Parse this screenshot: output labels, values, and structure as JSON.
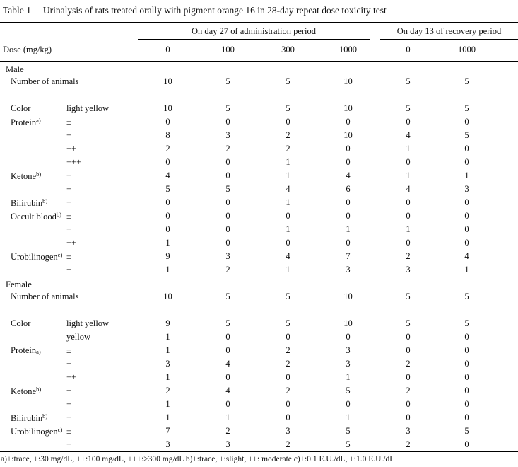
{
  "title": {
    "label": "Table 1",
    "text": "Urinalysis of rats treated orally with pigment orange 16 in 28-day repeat dose toxicity test"
  },
  "header": {
    "admin_group": "On day 27 of administration period",
    "recovery_group": "On day 13 of recovery period",
    "dose_label": "Dose (mg/kg)",
    "doses": [
      "0",
      "100",
      "300",
      "1000",
      "0",
      "1000"
    ]
  },
  "sections": [
    {
      "name": "Male",
      "rows": [
        {
          "wide": true,
          "label": "Number of animals",
          "values": [
            "10",
            "5",
            "5",
            "10",
            "5",
            "5"
          ]
        },
        {
          "type": "spacer"
        },
        {
          "label": "Color",
          "grade": "light yellow",
          "values": [
            "10",
            "5",
            "5",
            "10",
            "5",
            "5"
          ]
        },
        {
          "label": "Protein",
          "marker": "a)",
          "marker_style": "sup",
          "grade": "±",
          "values": [
            "0",
            "0",
            "0",
            "0",
            "0",
            "0"
          ]
        },
        {
          "grade": "+",
          "values": [
            "8",
            "3",
            "2",
            "10",
            "4",
            "5"
          ]
        },
        {
          "grade": "++",
          "values": [
            "2",
            "2",
            "2",
            "0",
            "1",
            "0"
          ]
        },
        {
          "grade": "+++",
          "values": [
            "0",
            "0",
            "1",
            "0",
            "0",
            "0"
          ]
        },
        {
          "label": "Ketone",
          "marker": "b)",
          "marker_style": "sup",
          "grade": "±",
          "values": [
            "4",
            "0",
            "1",
            "4",
            "1",
            "1"
          ]
        },
        {
          "grade": "+",
          "values": [
            "5",
            "5",
            "4",
            "6",
            "4",
            "3"
          ]
        },
        {
          "label": "Bilirubin",
          "marker": "b)",
          "marker_style": "sup",
          "grade": "+",
          "values": [
            "0",
            "0",
            "1",
            "0",
            "0",
            "0"
          ]
        },
        {
          "label": "Occult blood",
          "marker": "b)",
          "marker_style": "sup",
          "grade": "±",
          "values": [
            "0",
            "0",
            "0",
            "0",
            "0",
            "0"
          ]
        },
        {
          "grade": "+",
          "values": [
            "0",
            "0",
            "1",
            "1",
            "1",
            "0"
          ]
        },
        {
          "grade": "++",
          "values": [
            "1",
            "0",
            "0",
            "0",
            "0",
            "0"
          ]
        },
        {
          "label": "Urobilinogen",
          "marker": "c)",
          "marker_style": "sup",
          "grade": "±",
          "values": [
            "9",
            "3",
            "4",
            "7",
            "2",
            "4"
          ]
        },
        {
          "grade": "+",
          "values": [
            "1",
            "2",
            "1",
            "3",
            "3",
            "1"
          ]
        }
      ]
    },
    {
      "name": "Female",
      "rows": [
        {
          "wide": true,
          "label": "Number of animals",
          "values": [
            "10",
            "5",
            "5",
            "10",
            "5",
            "5"
          ]
        },
        {
          "type": "spacer"
        },
        {
          "label": "Color",
          "grade": "light yellow",
          "values": [
            "9",
            "5",
            "5",
            "10",
            "5",
            "5"
          ]
        },
        {
          "grade": "yellow",
          "values": [
            "1",
            "0",
            "0",
            "0",
            "0",
            "0"
          ]
        },
        {
          "label": "Protein",
          "marker": "a)",
          "marker_style": "low",
          "grade": "±",
          "values": [
            "1",
            "0",
            "2",
            "3",
            "0",
            "0"
          ]
        },
        {
          "grade": "+",
          "values": [
            "3",
            "4",
            "2",
            "3",
            "2",
            "0"
          ]
        },
        {
          "grade": "++",
          "values": [
            "1",
            "0",
            "0",
            "1",
            "0",
            "0"
          ]
        },
        {
          "label": "Ketone",
          "marker": "b)",
          "marker_style": "sup",
          "grade": "±",
          "values": [
            "2",
            "4",
            "2",
            "5",
            "2",
            "0"
          ]
        },
        {
          "grade": "+",
          "values": [
            "1",
            "0",
            "0",
            "0",
            "0",
            "0"
          ]
        },
        {
          "label": "Bilirubin",
          "marker": "b)",
          "marker_style": "sup",
          "grade": "+",
          "values": [
            "1",
            "1",
            "0",
            "1",
            "0",
            "0"
          ]
        },
        {
          "label": "Urobilinogen",
          "marker": "c)",
          "marker_style": "sup",
          "grade": "±",
          "values": [
            "7",
            "2",
            "3",
            "5",
            "3",
            "5"
          ]
        },
        {
          "grade": "+",
          "values": [
            "3",
            "3",
            "2",
            "5",
            "2",
            "0"
          ]
        }
      ]
    }
  ],
  "footnote": "a)±:trace, +:30 mg/dL, ++:100 mg/dL, +++:≥300 mg/dL  b)±:trace, +:slight, ++: moderate  c)±:0.1 E.U./dL, +:1.0 E.U./dL"
}
